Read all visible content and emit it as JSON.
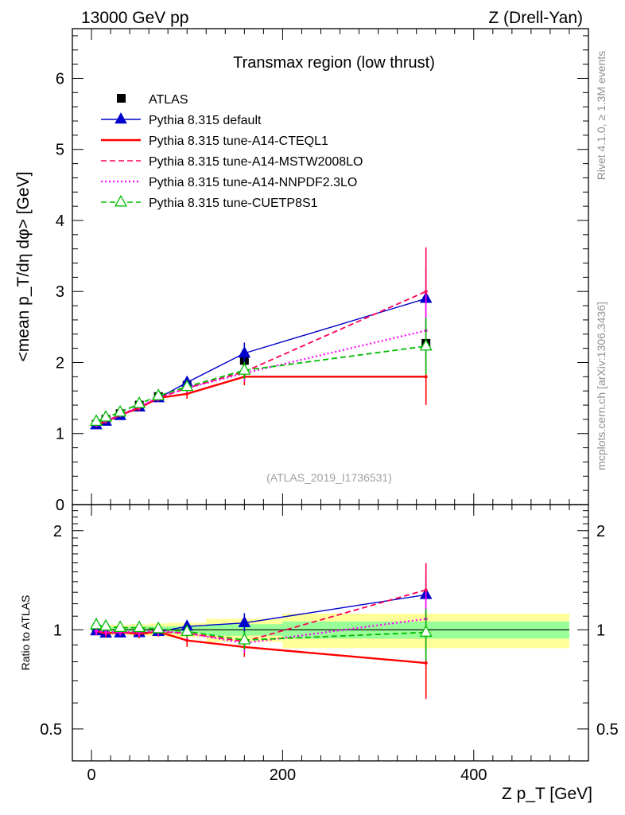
{
  "header": {
    "left": "13000 GeV pp",
    "right": "Z (Drell-Yan)"
  },
  "side_labels": {
    "rivet": "Rivet 4.1.0, ≥ 1.3M events",
    "mcplots": "mcplots.cern.ch [arXiv:1306.3436]"
  },
  "chart_data": {
    "type": "line",
    "title": "Transmax region (low thrust)",
    "analysis_id": "(ATLAS_2019_I1736531)",
    "ylabel_main": "<mean p_T/dη dφ> [GeV]",
    "ylabel_ratio": "Ratio to ATLAS",
    "xlabel": "Z p_T [GeV]",
    "xlim": [
      -20,
      520
    ],
    "ylim_main": [
      0,
      6.7
    ],
    "ylim_ratio": [
      0.4,
      2.4
    ],
    "x_ticks": [
      0,
      200,
      400
    ],
    "x_tick_labels": [
      "0",
      "200",
      "400"
    ],
    "y_ticks_main": [
      0,
      1,
      2,
      3,
      4,
      5,
      6
    ],
    "y_tick_labels_main": [
      "0",
      "1",
      "2",
      "3",
      "4",
      "5",
      "6"
    ],
    "y_ticks_ratio": [
      0.5,
      1,
      2
    ],
    "y_tick_labels_ratio": [
      "0.5",
      "1",
      "2"
    ],
    "x": [
      5,
      15,
      30,
      50,
      70,
      100,
      160,
      350
    ],
    "bin_edges": [
      0,
      10,
      20,
      40,
      60,
      80,
      120,
      200,
      500
    ],
    "data": {
      "name": "ATLAS",
      "values": [
        1.13,
        1.2,
        1.28,
        1.4,
        1.52,
        1.68,
        2.03,
        2.27
      ],
      "errors": [
        0.02,
        0.02,
        0.02,
        0.03,
        0.03,
        0.04,
        0.08,
        0.25
      ]
    },
    "series": [
      {
        "name": "Pythia 8.315 default",
        "color": "#0000cc",
        "style": "solid",
        "marker": "filled-triangle",
        "values": [
          1.12,
          1.17,
          1.25,
          1.37,
          1.5,
          1.72,
          2.13,
          2.9
        ],
        "errors": [
          0.03,
          0.03,
          0.03,
          0.04,
          0.05,
          0.07,
          0.15,
          0.45
        ]
      },
      {
        "name": "Pythia 8.315 tune-A14-CTEQL1",
        "color": "#ff0000",
        "style": "solid",
        "marker": "none",
        "values": [
          1.12,
          1.17,
          1.26,
          1.36,
          1.5,
          1.56,
          1.8,
          1.8
        ],
        "errors": [
          0.03,
          0.03,
          0.03,
          0.04,
          0.05,
          0.07,
          0.12,
          0.4
        ]
      },
      {
        "name": "Pythia 8.315 tune-A14-MSTW2008LO",
        "color": "#ff0055",
        "style": "dashed",
        "marker": "none",
        "values": [
          1.12,
          1.18,
          1.26,
          1.37,
          1.5,
          1.64,
          1.87,
          3.0
        ],
        "errors": [
          0.03,
          0.03,
          0.03,
          0.04,
          0.05,
          0.07,
          0.12,
          0.62
        ]
      },
      {
        "name": "Pythia 8.315 tune-A14-NNPDF2.3LO",
        "color": "#ff00ff",
        "style": "dotted",
        "marker": "none",
        "values": [
          1.12,
          1.18,
          1.26,
          1.38,
          1.51,
          1.64,
          1.85,
          2.45
        ],
        "errors": [
          0.03,
          0.03,
          0.03,
          0.04,
          0.05,
          0.07,
          0.12,
          0.5
        ]
      },
      {
        "name": "Pythia 8.315 tune-CUETP8S1",
        "color": "#00bb00",
        "style": "dashed",
        "marker": "open-triangle",
        "values": [
          1.17,
          1.23,
          1.3,
          1.42,
          1.53,
          1.66,
          1.89,
          2.23
        ],
        "errors": [
          0.03,
          0.03,
          0.03,
          0.04,
          0.05,
          0.07,
          0.12,
          0.4
        ]
      }
    ],
    "ratio_band": {
      "green_half_width": [
        0.02,
        0.02,
        0.02,
        0.025,
        0.025,
        0.025,
        0.04,
        0.06
      ],
      "yellow_half_width": [
        0.035,
        0.035,
        0.035,
        0.04,
        0.045,
        0.05,
        0.08,
        0.12
      ]
    },
    "legend_position": "top-left"
  }
}
